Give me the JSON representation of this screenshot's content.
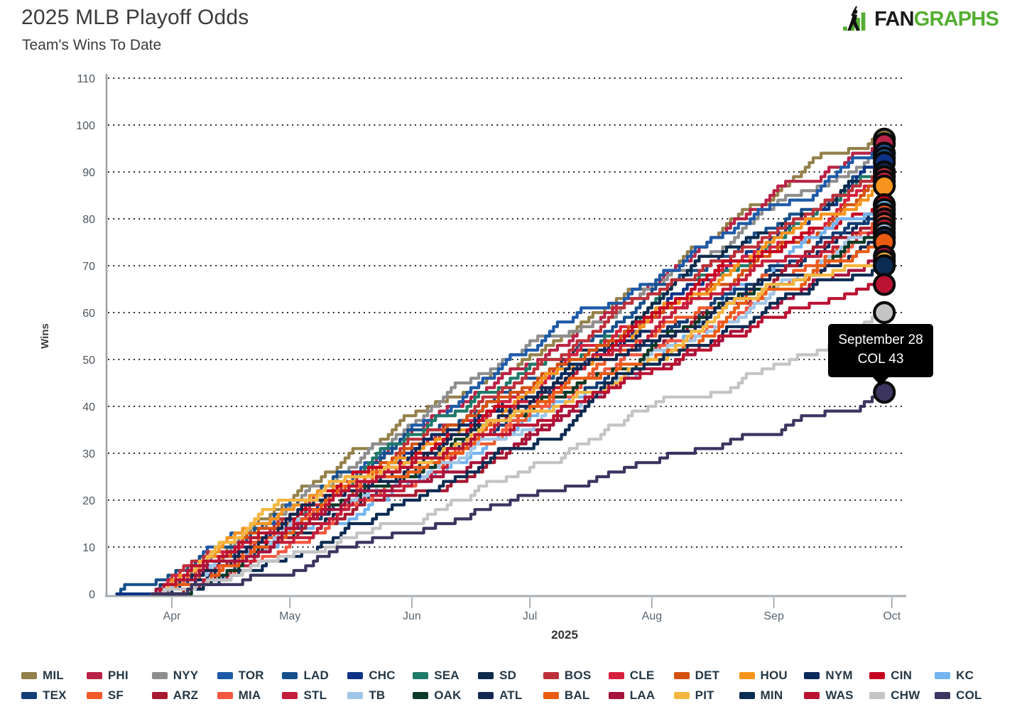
{
  "header": {
    "title": "2025 MLB Playoff Odds",
    "subtitle": "Team's Wins To Date"
  },
  "logo": {
    "fan": "FAN",
    "graphs": "GRAPHS",
    "green": "#54ae32",
    "black": "#1b1b1b"
  },
  "tooltip": {
    "date": "September 28",
    "team_value": "COL 43",
    "bg": "#000000",
    "text_color": "#ffffff"
  },
  "chart_data": {
    "type": "line",
    "title": "2025 MLB Playoff Odds",
    "subtitle": "Team's Wins To Date",
    "ylabel": "Wins",
    "xlabel": "2025",
    "ylim": [
      0,
      110
    ],
    "y_ticks": [
      0,
      10,
      20,
      30,
      40,
      50,
      60,
      70,
      80,
      90,
      100,
      110
    ],
    "x_ticks": [
      "Apr",
      "May",
      "Jun",
      "Jul",
      "Aug",
      "Sep",
      "Oct"
    ],
    "grid": "dotted-horizontal",
    "legend_position": "bottom",
    "line_style": "staircase cumulative wins, endpoint circle markers",
    "date_range": {
      "start": "Mar 18",
      "end": "Sep 28"
    },
    "highlight": {
      "date": "September 28",
      "team": "COL",
      "wins": 43
    },
    "series": [
      {
        "name": "MIL",
        "color": "#94804A",
        "final_wins": 97
      },
      {
        "name": "PHI",
        "color": "#B92346",
        "final_wins": 96
      },
      {
        "name": "NYY",
        "color": "#8E8E8E",
        "final_wins": 94
      },
      {
        "name": "TOR",
        "color": "#1E5AA8",
        "final_wins": 94
      },
      {
        "name": "LAD",
        "color": "#16508C",
        "final_wins": 93,
        "early_start": true,
        "early_wins": 2
      },
      {
        "name": "CHC",
        "color": "#0E3386",
        "final_wins": 92,
        "early_start": true,
        "early_wins": 0
      },
      {
        "name": "SEA",
        "color": "#1E7A68",
        "final_wins": 90
      },
      {
        "name": "SD",
        "color": "#0D2B4B",
        "final_wins": 90
      },
      {
        "name": "BOS",
        "color": "#BD3039",
        "final_wins": 89
      },
      {
        "name": "CLE",
        "color": "#D5213E",
        "final_wins": 88
      },
      {
        "name": "DET",
        "color": "#D4500F",
        "final_wins": 87
      },
      {
        "name": "HOU",
        "color": "#F7941D",
        "final_wins": 87
      },
      {
        "name": "NYM",
        "color": "#0A2A5C",
        "final_wins": 83
      },
      {
        "name": "CIN",
        "color": "#C6011F",
        "final_wins": 83
      },
      {
        "name": "KC",
        "color": "#74B4F0",
        "final_wins": 82
      },
      {
        "name": "TEX",
        "color": "#123D75",
        "final_wins": 81
      },
      {
        "name": "SF",
        "color": "#F05A28",
        "final_wins": 81
      },
      {
        "name": "ARZ",
        "color": "#A71930",
        "final_wins": 80
      },
      {
        "name": "MIA",
        "color": "#F4563F",
        "final_wins": 79
      },
      {
        "name": "STL",
        "color": "#C41E3A",
        "final_wins": 78
      },
      {
        "name": "TB",
        "color": "#9FC6E8",
        "final_wins": 77
      },
      {
        "name": "OAK",
        "color": "#0A3A26",
        "final_wins": 76
      },
      {
        "name": "ATL",
        "color": "#13274F",
        "final_wins": 76
      },
      {
        "name": "BAL",
        "color": "#EA5B12",
        "final_wins": 75
      },
      {
        "name": "LAA",
        "color": "#A6133C",
        "final_wins": 72
      },
      {
        "name": "PIT",
        "color": "#F5B63F",
        "final_wins": 71
      },
      {
        "name": "MIN",
        "color": "#0B2B52",
        "final_wins": 70
      },
      {
        "name": "WAS",
        "color": "#BA1231",
        "final_wins": 66
      },
      {
        "name": "CHW",
        "color": "#C4C4C4",
        "final_wins": 60
      },
      {
        "name": "COL",
        "color": "#3B3560",
        "final_wins": 43
      }
    ]
  }
}
